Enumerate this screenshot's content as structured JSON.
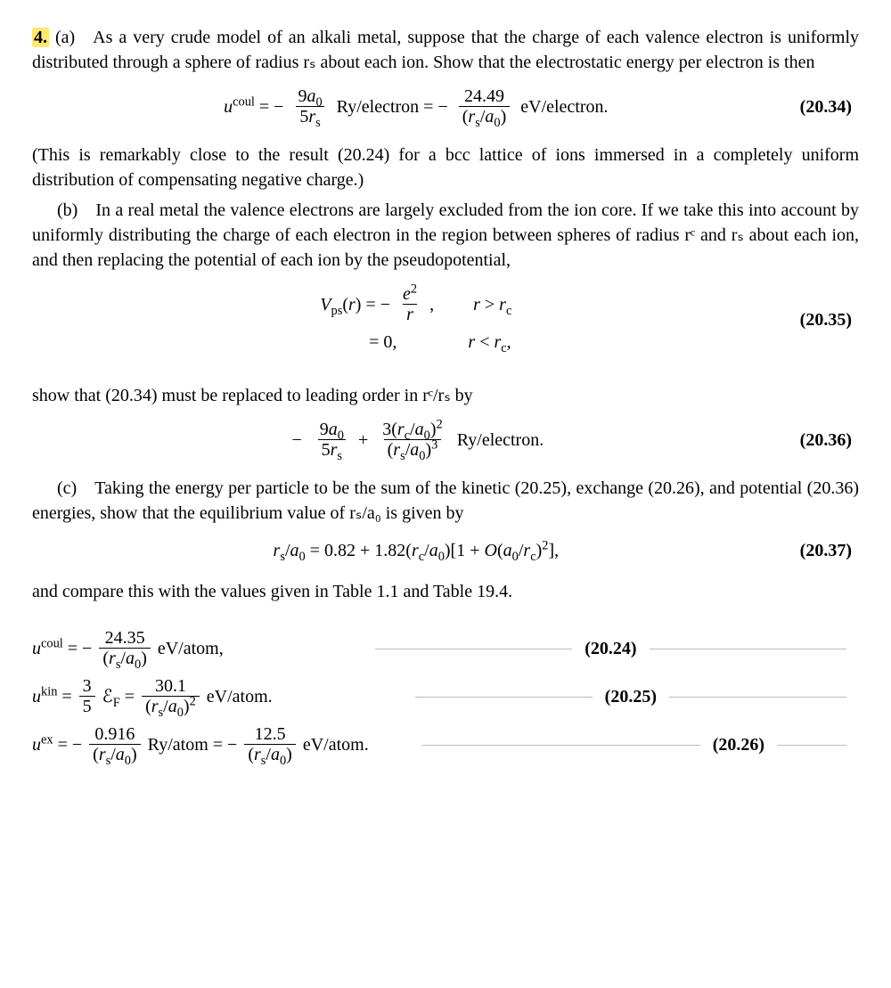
{
  "problem_number": "4.",
  "para_a": "(a) As a very crude model of an alkali metal, suppose that the charge of each valence electron is uniformly distributed through a sphere of radius rₛ about each ion. Show that the electrostatic energy per electron is then",
  "eq1": {
    "lhs_html": "<span class='it'>u</span><sup>coul</sup> = −",
    "frac1_num": "9<span class='it'>a</span><sub>0</sub>",
    "frac1_den": "5<span class='it'>r</span><sub>s</sub>",
    "mid1": "Ry/electron = −",
    "frac2_num": "24.49",
    "frac2_den": "(<span class='it'>r</span><sub>s</sub>/<span class='it'>a</span><sub>0</sub>)",
    "tail": "eV/electron.",
    "num": "(20.34)"
  },
  "para_a2": "(This is remarkably close to the result (20.24) for a bcc lattice of ions immersed in a completely uniform distribution of compensating negative charge.)",
  "para_b": "(b) In a real metal the valence electrons are largely excluded from the ion core. If we take this into account by uniformly distributing the charge of each electron in the region between spheres of radius rᶜ and rₛ about each ion, and then replacing the potential of each ion by the pseudopotential,",
  "eq2": {
    "line1_lhs": "<span class='it'>V</span><sub>ps</sub>(<span class='it'>r</span>) = −",
    "line1_frac_num": "<span class='it'>e</span><sup>2</sup>",
    "line1_frac_den": "<span class='it'>r</span>",
    "line1_comma": ",",
    "line1_cond": "<span class='it'>r</span> &gt; <span class='it'>r</span><sub>c</sub>",
    "line2_lhs": "= 0,",
    "line2_cond": "<span class='it'>r</span> &lt; <span class='it'>r</span><sub>c</sub>,",
    "num": "(20.35)"
  },
  "para_b2": "show that (20.34) must be replaced to leading order in rᶜ/rₛ by",
  "eq3": {
    "lead": "−",
    "frac1_num": "9<span class='it'>a</span><sub>0</sub>",
    "frac1_den": "5<span class='it'>r</span><sub>s</sub>",
    "plus": "+",
    "frac2_num": "3(<span class='it'>r</span><sub>c</sub>/<span class='it'>a</span><sub>0</sub>)<sup>2</sup>",
    "frac2_den": "(<span class='it'>r</span><sub>s</sub>/<span class='it'>a</span><sub>0</sub>)<sup>3</sup>",
    "tail": "Ry/electron.",
    "num": "(20.36)"
  },
  "para_c": "(c) Taking the energy per particle to be the sum of the kinetic (20.25), exchange (20.26), and potential (20.36) energies, show that the equilibrium value of rₛ/a₀ is given by",
  "eq4": {
    "body_html": "<span class='it'>r</span><sub>s</sub>/<span class='it'>a</span><sub>0</sub> = 0.82&nbsp;+&nbsp;1.82(<span class='it'>r</span><sub>c</sub>/<span class='it'>a</span><sub>0</sub>)[1&nbsp;+&nbsp;<span class='it'>O</span>(<span class='it'>a</span><sub>0</sub>/<span class='it'>r</span><sub>c</sub>)<sup>2</sup>],",
    "num": "(20.37)"
  },
  "para_c2": "and compare this with the values given in Table 1.1 and Table 19.4.",
  "ref": {
    "r1": {
      "lhs": "<span class='it'>u</span><sup>coul</sup> = −",
      "frac_num": "24.35",
      "frac_den": "(<span class='it'>r</span><sub>s</sub>/<span class='it'>a</span><sub>0</sub>)",
      "tail": "eV/atom,",
      "num": "(20.24)"
    },
    "r2": {
      "lhs": "<span class='it'>u</span><sup>kin</sup> =",
      "frac0_num": "3",
      "frac0_den": "5",
      "mid": "ℰ<sub>F</sub> =",
      "frac_num": "30.1",
      "frac_den": "(<span class='it'>r</span><sub>s</sub>/<span class='it'>a</span><sub>0</sub>)<sup>2</sup>",
      "tail": "eV/atom.",
      "num": "(20.25)"
    },
    "r3": {
      "lhs": "<span class='it'>u</span><sup>ex</sup> = −",
      "frac1_num": "0.916",
      "frac1_den": "(<span class='it'>r</span><sub>s</sub>/<span class='it'>a</span><sub>0</sub>)",
      "mid": "Ry/atom = −",
      "frac2_num": "12.5",
      "frac2_den": "(<span class='it'>r</span><sub>s</sub>/<span class='it'>a</span><sub>0</sub>)",
      "tail": "eV/atom.",
      "num": "(20.26)"
    }
  }
}
